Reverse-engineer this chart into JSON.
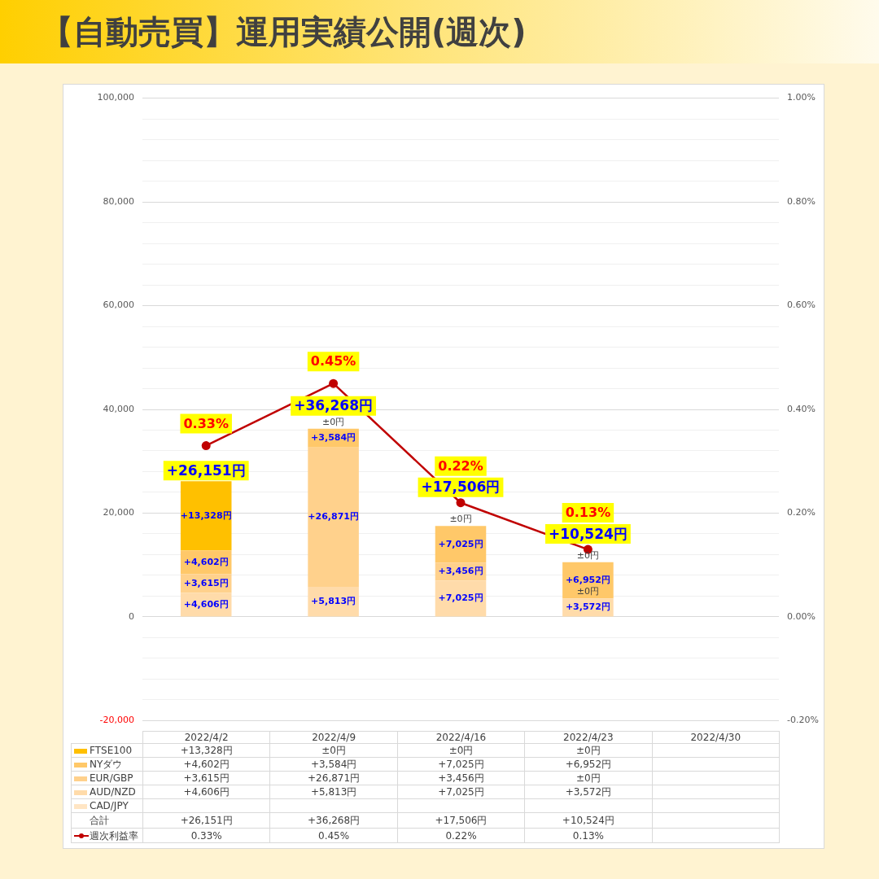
{
  "chart_data": {
    "type": "bar",
    "title": "【自動売買】運用実績公開(週次)",
    "categories": [
      "2022/4/2",
      "2022/4/9",
      "2022/4/16",
      "2022/4/23",
      "2022/4/30"
    ],
    "stacked": true,
    "series": [
      {
        "name": "CAD/JPY",
        "color": "#ffe5c4",
        "values": [
          null,
          null,
          null,
          null,
          null
        ]
      },
      {
        "name": "AUD/NZD",
        "color": "#ffdbaa",
        "values": [
          4606,
          5813,
          7025,
          3572,
          null
        ],
        "value_labels": [
          "+4,606円",
          "+5,813円",
          "+7,025円",
          "+3,572円",
          null
        ]
      },
      {
        "name": "EUR/GBP",
        "color": "#ffd18c",
        "values": [
          3615,
          26871,
          3456,
          0,
          null
        ],
        "value_labels": [
          "+3,615円",
          "+26,871円",
          "+3,456円",
          "±0円",
          null
        ]
      },
      {
        "name": "NYダウ",
        "color": "#ffc869",
        "values": [
          4602,
          3584,
          7025,
          6952,
          null
        ],
        "value_labels": [
          "+4,602円",
          "+3,584円",
          "+7,025円",
          "+6,952円",
          null
        ]
      },
      {
        "name": "FTSE100",
        "color": "#ffc000",
        "values": [
          13328,
          0,
          0,
          0,
          null
        ],
        "value_labels": [
          "+13,328円",
          "±0円",
          "±0円",
          "±0円",
          null
        ]
      },
      {
        "name": "週次利益率",
        "type": "line",
        "axis": "y2",
        "color": "#c00000",
        "values": [
          0.33,
          0.45,
          0.22,
          0.13,
          null
        ],
        "value_labels": [
          "0.33%",
          "0.45%",
          "0.22%",
          "0.13%",
          null
        ]
      }
    ],
    "totals": [
      "+26,151円",
      "+36,268円",
      "+17,506円",
      "+10,524円",
      null
    ],
    "annotations": [
      "合計"
    ],
    "ylim": [
      -20000,
      100000
    ],
    "yticks": [
      {
        "value": -20000,
        "label": "-20,000"
      },
      {
        "value": -16000,
        "label": null
      },
      {
        "value": -12000,
        "label": null
      },
      {
        "value": -8000,
        "label": null
      },
      {
        "value": -4000,
        "label": null
      },
      0,
      {
        "value": 4000,
        "label": null
      },
      {
        "value": 8000,
        "label": null
      },
      {
        "value": 12000,
        "label": null
      },
      {
        "value": 16000,
        "label": null
      },
      {
        "value": 20000,
        "label": "20,000"
      },
      {
        "value": 24000,
        "label": null
      },
      {
        "value": 28000,
        "label": null
      },
      {
        "value": 32000,
        "label": null
      },
      {
        "value": 36000,
        "label": null
      },
      {
        "value": 40000,
        "label": "40,000"
      },
      {
        "value": 44000,
        "label": null
      },
      {
        "value": 48000,
        "label": null
      },
      {
        "value": 52000,
        "label": null
      },
      {
        "value": 56000,
        "label": null
      },
      {
        "value": 60000,
        "label": "60,000"
      },
      {
        "value": 64000,
        "label": null
      },
      {
        "value": 68000,
        "label": null
      },
      {
        "value": 72000,
        "label": null
      },
      {
        "value": 76000,
        "label": null
      },
      {
        "value": 80000,
        "label": "80,000"
      },
      {
        "value": 84000,
        "label": null
      },
      {
        "value": 88000,
        "label": null
      },
      {
        "value": 92000,
        "label": null
      },
      {
        "value": 96000,
        "label": null
      },
      {
        "value": 100000,
        "label": "100,000"
      }
    ],
    "y2lim": [
      -0.2,
      1.0
    ],
    "y2ticks": [
      {
        "value": -0.2,
        "label": "-0.20%"
      },
      {
        "value": 0,
        "label": "0.00%"
      },
      {
        "value": 0.2,
        "label": "0.20%"
      },
      {
        "value": 0.4,
        "label": "0.40%"
      },
      {
        "value": 0.6,
        "label": "0.60%"
      },
      {
        "value": 0.8,
        "label": "0.80%"
      },
      {
        "value": 1.0,
        "label": "1.00%"
      }
    ],
    "grid": "y",
    "legend": "bottom",
    "marker": "circle"
  }
}
